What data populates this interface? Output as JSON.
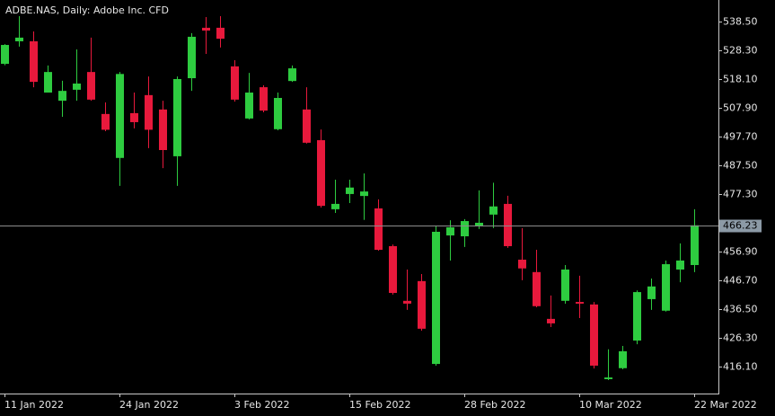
{
  "chart_data": {
    "type": "candlestick",
    "title": "ADBE.NAS, Daily:  Adobe Inc. CFD",
    "categories": [
      "11 Jan 2022",
      null,
      null,
      null,
      null,
      null,
      null,
      null,
      "24 Jan 2022",
      null,
      null,
      null,
      null,
      null,
      null,
      null,
      "3 Feb 2022",
      null,
      null,
      null,
      null,
      null,
      null,
      null,
      "15 Feb 2022",
      null,
      null,
      null,
      null,
      null,
      null,
      null,
      "28 Feb 2022",
      null,
      null,
      null,
      null,
      null,
      null,
      null,
      "10 Mar 2022",
      null,
      null,
      null,
      null,
      null,
      null,
      null,
      "22 Mar 2022"
    ],
    "open": [
      523.5,
      531.5,
      531.5,
      513.3,
      510.4,
      514.3,
      520.6,
      505.7,
      490.1,
      506.0,
      512.4,
      507.3,
      490.7,
      518.4,
      536.3,
      536.3,
      522.6,
      504.1,
      515.2,
      500.3,
      517.4,
      507.3,
      496.4,
      471.9,
      477.3,
      476.6,
      472.2,
      458.8,
      439.4,
      446.4,
      417.0,
      462.6,
      462.3,
      466.1,
      470.0,
      473.8,
      454.0,
      449.6,
      433.0,
      439.4,
      439.0,
      438.1,
      411.6,
      415.5,
      425.3,
      440.0,
      435.9,
      450.5,
      452.1
    ],
    "high": [
      530.5,
      540.4,
      535.0,
      522.9,
      517.5,
      528.6,
      532.8,
      509.8,
      520.6,
      513.3,
      519.0,
      510.4,
      519.0,
      534.4,
      540.1,
      540.4,
      524.8,
      520.3,
      515.9,
      513.3,
      522.9,
      515.2,
      500.2,
      482.4,
      482.4,
      484.6,
      475.4,
      459.4,
      450.5,
      448.9,
      466.1,
      468.0,
      468.4,
      478.6,
      481.3,
      476.7,
      465.2,
      457.5,
      441.3,
      452.1,
      448.3,
      439.0,
      422.2,
      423.4,
      443.1,
      447.3,
      453.7,
      459.8,
      471.9
    ],
    "low": [
      523.0,
      529.6,
      515.2,
      513.3,
      504.7,
      510.4,
      510.4,
      499.6,
      480.2,
      500.6,
      493.6,
      486.5,
      480.2,
      513.9,
      527.0,
      529.3,
      510.1,
      503.8,
      506.3,
      499.9,
      517.1,
      495.2,
      472.5,
      470.6,
      474.1,
      468.1,
      457.2,
      441.6,
      436.2,
      428.8,
      416.4,
      453.7,
      458.5,
      464.9,
      465.2,
      458.2,
      446.7,
      437.1,
      430.1,
      438.4,
      433.3,
      415.4,
      411.3,
      415.1,
      424.0,
      436.2,
      435.6,
      446.0,
      449.6
    ],
    "close": [
      530.2,
      532.8,
      517.1,
      520.6,
      513.9,
      516.5,
      510.8,
      500.1,
      519.9,
      502.8,
      500.1,
      492.9,
      518.1,
      533.1,
      535.3,
      532.4,
      510.8,
      513.3,
      506.9,
      511.4,
      521.9,
      495.5,
      473.1,
      473.8,
      479.6,
      478.2,
      457.5,
      442.2,
      438.4,
      429.5,
      463.9,
      465.5,
      467.7,
      467.1,
      472.9,
      458.8,
      450.9,
      437.5,
      431.4,
      450.5,
      438.4,
      416.4,
      412.2,
      421.5,
      442.5,
      444.5,
      452.4,
      453.7,
      466.2
    ],
    "up_color": "#2ecc40",
    "down_color": "#e8193c",
    "current_price": 466.23,
    "ylim": [
      406.5,
      546.15
    ],
    "yticks": [
      {
        "value": 538.5,
        "label": "538.50"
      },
      {
        "value": 528.3,
        "label": "528.30"
      },
      {
        "value": 518.1,
        "label": "518.10"
      },
      {
        "value": 507.9,
        "label": "507.90"
      },
      {
        "value": 497.7,
        "label": "497.70"
      },
      {
        "value": 487.5,
        "label": "487.50"
      },
      {
        "value": 477.3,
        "label": "477.30"
      },
      {
        "value": 456.9,
        "label": "456.90"
      },
      {
        "value": 446.7,
        "label": "446.70"
      },
      {
        "value": 436.5,
        "label": "436.50"
      },
      {
        "value": 426.3,
        "label": "426.30"
      },
      {
        "value": 416.1,
        "label": "416.10"
      }
    ]
  }
}
